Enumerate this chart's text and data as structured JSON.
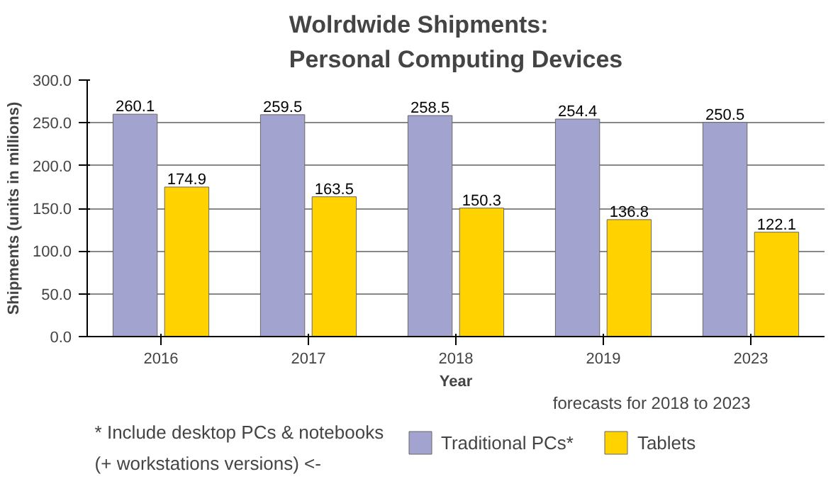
{
  "chart_data": {
    "type": "bar",
    "title": "Wolrdwide Shipments:\nPersonal Computing Devices",
    "xlabel": "Year",
    "ylabel": "Shipments (units in millions)",
    "categories": [
      "2016",
      "2017",
      "2018",
      "2019",
      "2023"
    ],
    "series": [
      {
        "name": "Traditional PCs*",
        "color": "#a3a3cf",
        "values": [
          260.1,
          259.5,
          258.5,
          254.4,
          250.5
        ]
      },
      {
        "name": "Tablets",
        "color": "#ffd200",
        "values": [
          174.9,
          163.5,
          150.3,
          136.8,
          122.1
        ]
      }
    ],
    "ylim": [
      0,
      300
    ],
    "yticks": [
      {
        "value": 0,
        "label": "0.0"
      },
      {
        "value": 50,
        "label": "50.0"
      },
      {
        "value": 100,
        "label": "100.0"
      },
      {
        "value": 150,
        "label": "150.0"
      },
      {
        "value": 200,
        "label": "200.0"
      },
      {
        "value": 250,
        "label": "250.0"
      },
      {
        "value": 300,
        "label": "300.0"
      }
    ],
    "grid": "y",
    "legend": "bottom",
    "data_labels": true,
    "annotations": [
      "forecasts for 2018  to 2023",
      "* Include desktop PCs & notebooks",
      "(+ workstations versions)      <-"
    ]
  }
}
